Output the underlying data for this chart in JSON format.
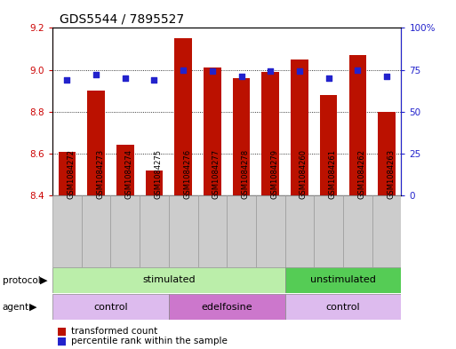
{
  "title": "GDS5544 / 7895527",
  "samples": [
    "GSM1084272",
    "GSM1084273",
    "GSM1084274",
    "GSM1084275",
    "GSM1084276",
    "GSM1084277",
    "GSM1084278",
    "GSM1084279",
    "GSM1084260",
    "GSM1084261",
    "GSM1084262",
    "GSM1084263"
  ],
  "transformed_count": [
    8.61,
    8.9,
    8.64,
    8.52,
    9.15,
    9.01,
    8.96,
    8.99,
    9.05,
    8.88,
    9.07,
    8.8
  ],
  "percentile_rank": [
    69,
    72,
    70,
    69,
    75,
    74,
    71,
    74,
    74,
    70,
    75,
    71
  ],
  "ylim_left": [
    8.4,
    9.2
  ],
  "ylim_right": [
    0,
    100
  ],
  "yticks_left": [
    8.4,
    8.6,
    8.8,
    9.0,
    9.2
  ],
  "yticks_right": [
    0,
    25,
    50,
    75,
    100
  ],
  "ytick_labels_right": [
    "0",
    "25",
    "50",
    "75",
    "100%"
  ],
  "bar_color": "#bb1100",
  "dot_color": "#2222cc",
  "protocol_labels": [
    {
      "text": "stimulated",
      "start": 0,
      "end": 7,
      "color": "#bbeeaa"
    },
    {
      "text": "unstimulated",
      "start": 8,
      "end": 11,
      "color": "#55cc55"
    }
  ],
  "agent_labels": [
    {
      "text": "control",
      "start": 0,
      "end": 3,
      "color": "#ddbbee"
    },
    {
      "text": "edelfosine",
      "start": 4,
      "end": 7,
      "color": "#cc77cc"
    },
    {
      "text": "control",
      "start": 8,
      "end": 11,
      "color": "#ddbbee"
    }
  ],
  "left_axis_color": "#cc0000",
  "right_axis_color": "#2222cc",
  "title_fontsize": 10,
  "tick_fontsize": 7.5,
  "bar_width": 0.6,
  "sample_bg_color": "#cccccc",
  "background_color": "#ffffff"
}
